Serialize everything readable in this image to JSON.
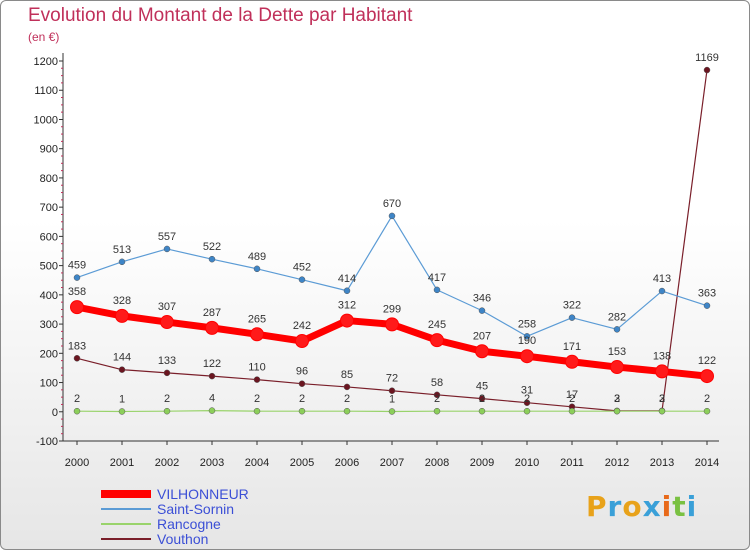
{
  "title": "Evolution du Montant de la Dette par Habitant",
  "unit": "(en €)",
  "brand": {
    "letters": [
      "P",
      "r",
      "o",
      "x",
      "i",
      "t",
      "i"
    ],
    "colors": [
      "#e8a21a",
      "#3aa0d8",
      "#e8a21a",
      "#3aa0d8",
      "#e86a1a",
      "#7ac142",
      "#3aa0d8"
    ]
  },
  "chart_data": {
    "type": "line",
    "title": "Evolution du Montant de la Dette par Habitant",
    "ylabel": "(en €)",
    "xlabel": "",
    "x": [
      "2000",
      "2001",
      "2002",
      "2003",
      "2004",
      "2005",
      "2006",
      "2007",
      "2008",
      "2009",
      "2010",
      "2011",
      "2012",
      "2013",
      "2014"
    ],
    "ylim": [
      -100,
      1200
    ],
    "yticks": [
      -100,
      0,
      100,
      200,
      300,
      400,
      500,
      600,
      700,
      800,
      900,
      1000,
      1100,
      1200
    ],
    "grid": false,
    "legend_position": "bottom-left",
    "series": [
      {
        "name": "VILHONNEUR",
        "color": "#ff0000",
        "marker": "#ff1a1a",
        "values": [
          358,
          328,
          307,
          287,
          265,
          242,
          312,
          299,
          245,
          207,
          190,
          171,
          153,
          138,
          122
        ]
      },
      {
        "name": "Saint-Sornin",
        "color": "#5b9bd5",
        "marker": "#3e85c7",
        "values": [
          459,
          513,
          557,
          522,
          489,
          452,
          414,
          670,
          417,
          346,
          258,
          322,
          282,
          413,
          363
        ]
      },
      {
        "name": "Rancogne",
        "color": "#99d36b",
        "marker": "#8ccf5a",
        "values": [
          2,
          1,
          2,
          4,
          2,
          2,
          2,
          1,
          2,
          2,
          2,
          2,
          2,
          2,
          2
        ]
      },
      {
        "name": "Vouthon",
        "color": "#7a1f2a",
        "marker": "#6b1520",
        "values": [
          183,
          144,
          133,
          122,
          110,
          96,
          85,
          72,
          58,
          45,
          31,
          17,
          3,
          3,
          1169
        ]
      }
    ]
  }
}
